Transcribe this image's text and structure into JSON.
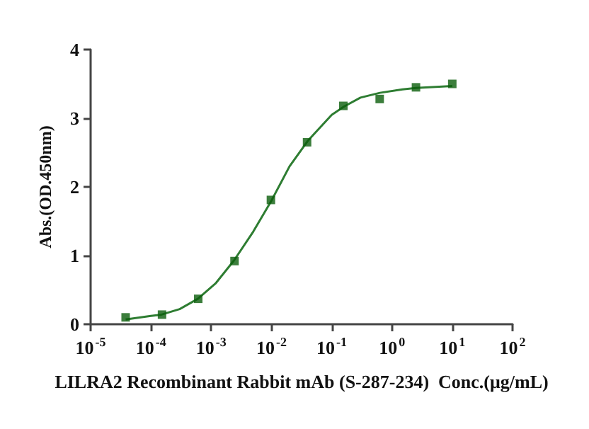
{
  "chart_data": {
    "type": "scatter",
    "xlabel": "LILRA2 Recombinant Rabbit mAb (S-287-234)  Conc.(μg/mL)",
    "ylabel": "Abs.(OD.450nm)",
    "log": "x",
    "xlim": [
      1e-05,
      100
    ],
    "ylim": [
      0,
      4
    ],
    "xticks": [
      {
        "value": 1e-05,
        "label": "10$^{-5}$"
      },
      {
        "value": 0.0001,
        "label": "10$^{-4}$"
      },
      {
        "value": 0.001,
        "label": "10$^{-3}$"
      },
      {
        "value": 0.01,
        "label": "10$^{-2}$"
      },
      {
        "value": 0.1,
        "label": "10$^{-1}$"
      },
      {
        "value": 1,
        "label": "10$^{0}$"
      },
      {
        "value": 10,
        "label": "10$^{1}$"
      },
      {
        "value": 100,
        "label": "10$^{2}$"
      }
    ],
    "yticks": [
      0,
      1,
      2,
      3,
      4
    ],
    "grid": false,
    "marker": "square",
    "series": [
      {
        "color": "#0b5e0b",
        "x": [
          3.81e-05,
          0.000153,
          0.00061,
          0.00244,
          0.0098,
          0.039,
          0.156,
          0.625,
          2.5,
          10
        ],
        "values": [
          0.1,
          0.14,
          0.37,
          0.92,
          1.81,
          2.65,
          3.18,
          3.28,
          3.45,
          3.5
        ]
      },
      {
        "type": "line",
        "color": "#2e7d32",
        "marker": "none",
        "line_style": "solid",
        "x": [
          3.81e-05,
          0.0001,
          0.00015,
          0.0003,
          0.0006,
          0.0012,
          0.0024,
          0.005,
          0.01,
          0.02,
          0.04,
          0.1,
          0.16,
          0.3,
          0.63,
          1.5,
          2.5,
          10
        ],
        "values": [
          0.07,
          0.12,
          0.14,
          0.22,
          0.37,
          0.6,
          0.93,
          1.35,
          1.8,
          2.3,
          2.67,
          3.05,
          3.17,
          3.3,
          3.37,
          3.42,
          3.44,
          3.47
        ]
      }
    ]
  }
}
